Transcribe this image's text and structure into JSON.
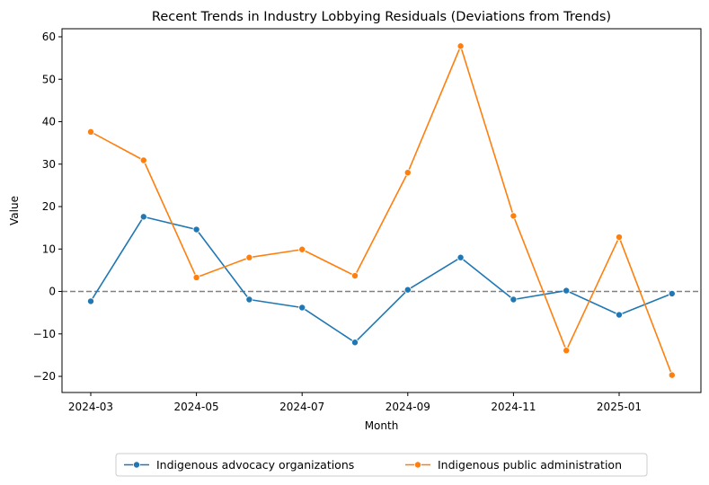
{
  "chart_data": {
    "type": "line",
    "title": "Recent Trends in Industry Lobbying Residuals (Deviations from Trends)",
    "xlabel": "Month",
    "ylabel": "Value",
    "x": [
      "2024-03",
      "2024-04",
      "2024-05",
      "2024-06",
      "2024-07",
      "2024-08",
      "2024-09",
      "2024-10",
      "2024-11",
      "2024-12",
      "2025-01",
      "2025-02"
    ],
    "x_tick_labels": [
      "2024-03",
      "2024-05",
      "2024-07",
      "2024-09",
      "2024-11",
      "2025-01"
    ],
    "y_ticks": [
      -20,
      -10,
      0,
      10,
      20,
      30,
      40,
      50,
      60
    ],
    "ylim": [
      -23.8,
      61.9
    ],
    "reference_line": {
      "y": 0,
      "style": "dashed",
      "color": "#808080"
    },
    "grid": false,
    "legend_position": "bottom-center",
    "series": [
      {
        "name": "Indigenous advocacy organizations",
        "color": "#1f77b4",
        "values": [
          -2.3,
          17.6,
          14.6,
          -1.9,
          -3.8,
          -12.0,
          0.4,
          8.0,
          -1.9,
          0.2,
          -5.5,
          -0.5
        ]
      },
      {
        "name": "Indigenous public administration",
        "color": "#ff7f0e",
        "values": [
          37.6,
          30.9,
          3.3,
          8.0,
          9.9,
          3.7,
          28.0,
          57.8,
          17.8,
          -13.9,
          12.8,
          -19.7
        ]
      }
    ]
  }
}
